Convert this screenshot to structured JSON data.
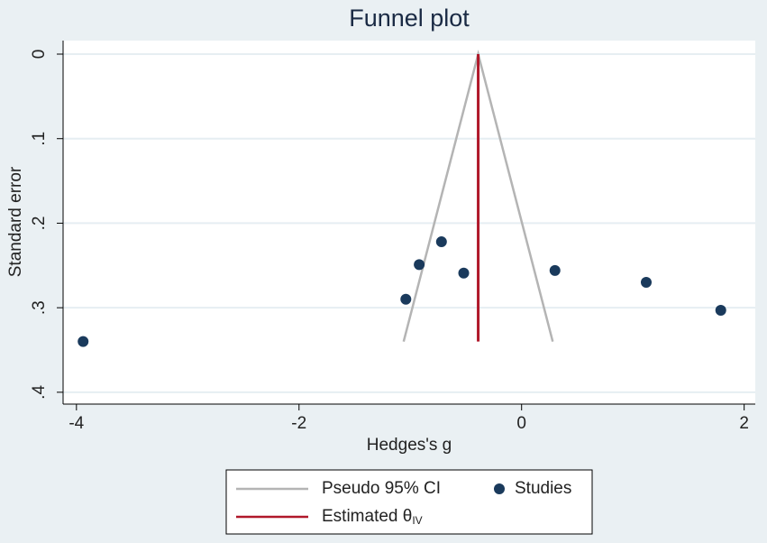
{
  "chart_data": {
    "type": "scatter",
    "title": "Funnel plot",
    "xlabel": "Hedges's g",
    "ylabel": "Standard error",
    "xlim": [
      -4.12,
      2.1
    ],
    "ylim": [
      -0.016,
      0.414
    ],
    "y_reversed": true,
    "xticks": [
      -4,
      -2,
      0,
      2
    ],
    "yticks": [
      0,
      {
        "value": 0.1,
        "label": ".1"
      },
      {
        "value": 0.2,
        "label": ".2"
      },
      {
        "value": 0.3,
        "label": ".3"
      },
      {
        "value": 0.4,
        "label": ".4"
      }
    ],
    "grid": true,
    "legend": "bottom",
    "ci": {
      "name": "Pseudo 95% CI",
      "color": "#b4b4b4",
      "x": [
        -1.06,
        -0.39,
        0.28
      ],
      "y": [
        0.34,
        0,
        0.34
      ]
    },
    "estimate": {
      "name": "Estimated θ",
      "subscript": "IV",
      "color": "#b0182a",
      "x": [
        -0.39,
        -0.39
      ],
      "y": [
        0,
        0.34
      ]
    },
    "series": [
      {
        "name": "Studies",
        "color": "#1a3a5c",
        "x": [
          -3.94,
          -1.04,
          -0.92,
          -0.72,
          -0.52,
          0.3,
          1.12,
          1.79
        ],
        "y": [
          0.34,
          0.29,
          0.249,
          0.222,
          0.259,
          0.256,
          0.27,
          0.303
        ]
      }
    ]
  }
}
